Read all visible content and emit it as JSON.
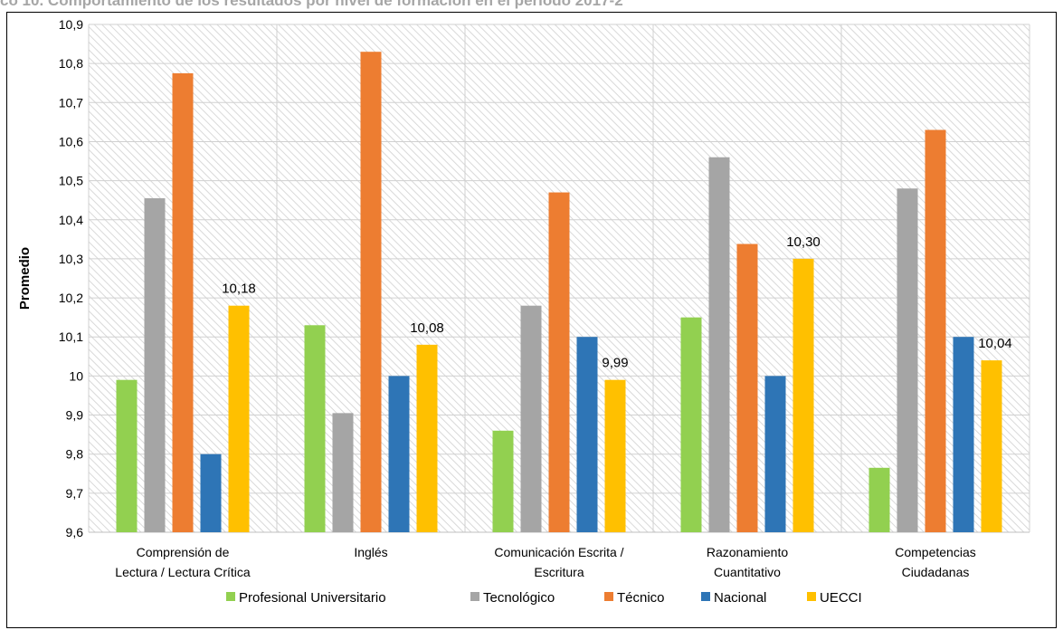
{
  "page_title": "co 10. Comportamiento de los resultados por nivel de formación en el periodo 2017-2",
  "chart_data": {
    "type": "bar",
    "title": "co 10. Comportamiento de los resultados por nivel de formación en el periodo 2017-2",
    "ylabel": "Promedio",
    "xlabel": "",
    "ylim": [
      9.6,
      10.9
    ],
    "ytick_step": 0.1,
    "yticks": [
      "9,6",
      "9,7",
      "9,8",
      "9,9",
      "10",
      "10,1",
      "10,2",
      "10,3",
      "10,4",
      "10,5",
      "10,6",
      "10,7",
      "10,8",
      "10,9"
    ],
    "grid": true,
    "legend_position": "bottom",
    "categories": [
      [
        "Comprensión de",
        "Lectura / Lectura Crítica"
      ],
      [
        "Inglés"
      ],
      [
        "Comunicación Escrita /",
        "Escritura"
      ],
      [
        "Razonamiento",
        "Cuantitativo"
      ],
      [
        "Competencias",
        "Ciudadanas"
      ]
    ],
    "series": [
      {
        "name": "Profesional Universitario",
        "color": "#92d050",
        "values": [
          9.99,
          10.13,
          9.86,
          10.15,
          9.765
        ]
      },
      {
        "name": "Tecnológico",
        "color": "#a5a5a5",
        "values": [
          10.455,
          9.905,
          10.18,
          10.56,
          10.48
        ]
      },
      {
        "name": "Técnico",
        "color": "#ed7d31",
        "values": [
          10.775,
          10.83,
          10.47,
          10.338,
          10.63
        ]
      },
      {
        "name": "Nacional",
        "color": "#2e75b6",
        "values": [
          9.8,
          10.0,
          10.1,
          10.0,
          10.1
        ]
      },
      {
        "name": "UECCI",
        "color": "#ffc000",
        "values": [
          10.18,
          10.08,
          9.99,
          10.3,
          10.04
        ],
        "labels": [
          "10,18",
          "10,08",
          "9,99",
          "10,30",
          "10,04"
        ]
      }
    ]
  }
}
